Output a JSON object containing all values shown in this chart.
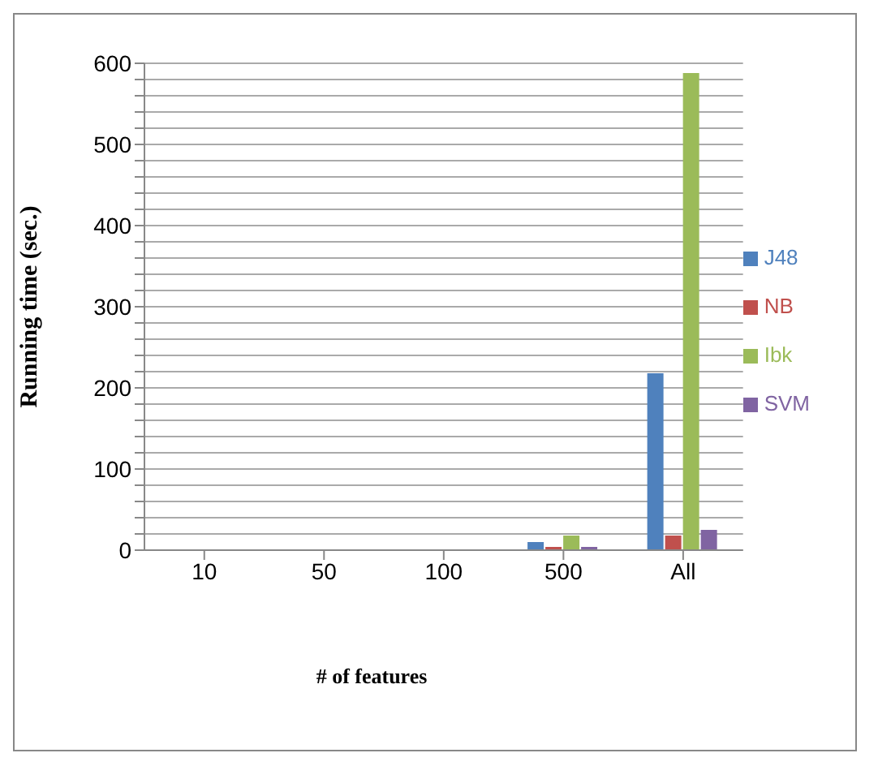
{
  "chart_data": {
    "type": "bar",
    "xlabel": "# of features",
    "ylabel": "Running time (sec.)",
    "categories": [
      "10",
      "50",
      "100",
      "500",
      "All"
    ],
    "series": [
      {
        "name": "J48",
        "color": "#4f81bd",
        "values": [
          null,
          null,
          null,
          10,
          218
        ]
      },
      {
        "name": "NB",
        "color": "#c0504d",
        "values": [
          null,
          null,
          null,
          4,
          18
        ]
      },
      {
        "name": "Ibk",
        "color": "#9bbb59",
        "values": [
          null,
          null,
          null,
          18,
          588
        ]
      },
      {
        "name": "SVM",
        "color": "#8064a2",
        "values": [
          null,
          null,
          null,
          4,
          25
        ]
      }
    ],
    "ylim": [
      0,
      600
    ],
    "yticks": [
      0,
      {
        "value": 20,
        "label": null
      },
      {
        "value": 40,
        "label": null
      },
      {
        "value": 60,
        "label": null
      },
      {
        "value": 80,
        "label": null
      },
      100,
      {
        "value": 120,
        "label": null
      },
      {
        "value": 140,
        "label": null
      },
      {
        "value": 160,
        "label": null
      },
      {
        "value": 180,
        "label": null
      },
      200,
      {
        "value": 220,
        "label": null
      },
      {
        "value": 240,
        "label": null
      },
      {
        "value": 260,
        "label": null
      },
      {
        "value": 280,
        "label": null
      },
      300,
      {
        "value": 320,
        "label": null
      },
      {
        "value": 340,
        "label": null
      },
      {
        "value": 360,
        "label": null
      },
      {
        "value": 380,
        "label": null
      },
      400,
      {
        "value": 420,
        "label": null
      },
      {
        "value": 440,
        "label": null
      },
      {
        "value": 460,
        "label": null
      },
      {
        "value": 480,
        "label": null
      },
      500,
      {
        "value": 520,
        "label": null
      },
      {
        "value": 540,
        "label": null
      },
      {
        "value": 560,
        "label": null
      },
      {
        "value": 580,
        "label": null
      },
      600
    ],
    "grid": "y",
    "legend": "right"
  }
}
